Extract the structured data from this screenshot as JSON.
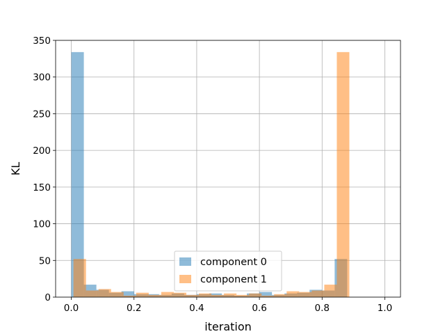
{
  "chart_data": {
    "type": "histogram",
    "title": "",
    "xlabel": "iteration",
    "ylabel": "KL",
    "xlim": [
      -0.05,
      1.05
    ],
    "ylim": [
      0,
      350
    ],
    "xticks": [
      "0.0",
      "0.2",
      "0.4",
      "0.6",
      "0.8",
      "1.0"
    ],
    "yticks": [
      "0",
      "50",
      "100",
      "150",
      "200",
      "250",
      "300",
      "350"
    ],
    "grid": true,
    "legend_position": "lower-center",
    "series": [
      {
        "name": "component 0",
        "color": "#1f77b4",
        "bin_start": 0.0,
        "bin_width": 0.04,
        "values": [
          334,
          17,
          10,
          6,
          8,
          4,
          4,
          3,
          5,
          3,
          4,
          5,
          3,
          2,
          5,
          7,
          3,
          5,
          6,
          10,
          9,
          52
        ]
      },
      {
        "name": "component 1",
        "color": "#ff7f0e",
        "bin_start": 0.0069,
        "bin_width": 0.04,
        "values": [
          52,
          9,
          11,
          7,
          2,
          6,
          3,
          7,
          6,
          3,
          5,
          3,
          5,
          3,
          5,
          2,
          4,
          8,
          7,
          9,
          17,
          334
        ]
      }
    ]
  }
}
